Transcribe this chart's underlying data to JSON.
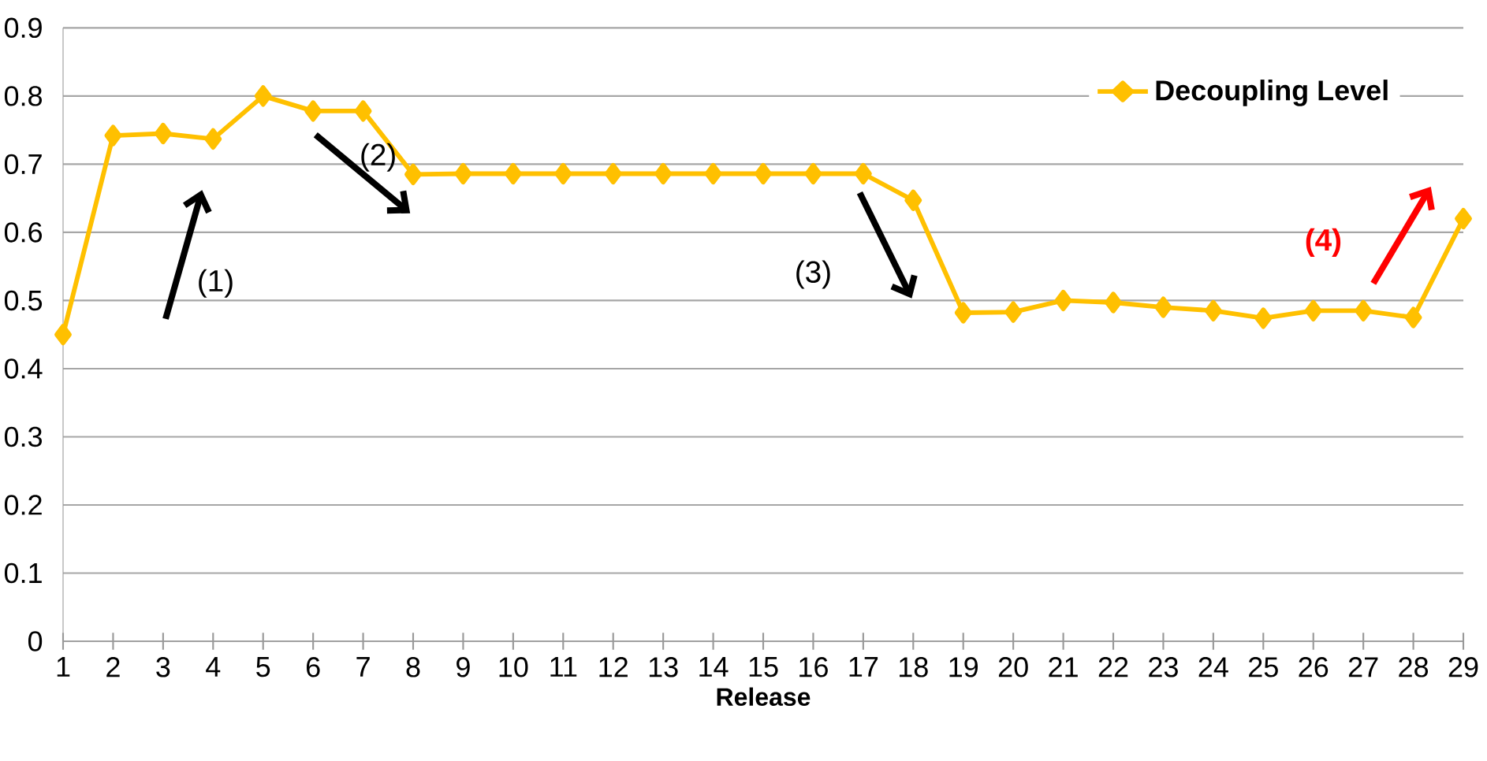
{
  "chart_data": {
    "type": "line",
    "xlabel": "Release",
    "categories": [
      "1",
      "2",
      "3",
      "4",
      "5",
      "6",
      "7",
      "8",
      "9",
      "10",
      "11",
      "12",
      "13",
      "14",
      "15",
      "16",
      "17",
      "18",
      "19",
      "20",
      "21",
      "22",
      "23",
      "24",
      "25",
      "26",
      "27",
      "28",
      "29"
    ],
    "series": [
      {
        "name": "Decoupling Level",
        "color": "#ffc000",
        "values": [
          0.45,
          0.742,
          0.745,
          0.737,
          0.8,
          0.778,
          0.778,
          0.685,
          0.686,
          0.686,
          0.686,
          0.686,
          0.686,
          0.686,
          0.686,
          0.686,
          0.686,
          0.647,
          0.482,
          0.483,
          0.5,
          0.497,
          0.49,
          0.485,
          0.474,
          0.485,
          0.485,
          0.475,
          0.62
        ]
      }
    ],
    "ylim": [
      0,
      0.9
    ],
    "yticks": [
      0,
      0.1,
      0.2,
      0.3,
      0.4,
      0.5,
      0.6,
      0.7,
      0.8,
      0.9
    ],
    "grid": "y",
    "legend": "top right",
    "marker": "diamond",
    "line_style": "solid",
    "annotations": [
      "(1)",
      "(2)",
      "(3)",
      "(4)"
    ]
  }
}
